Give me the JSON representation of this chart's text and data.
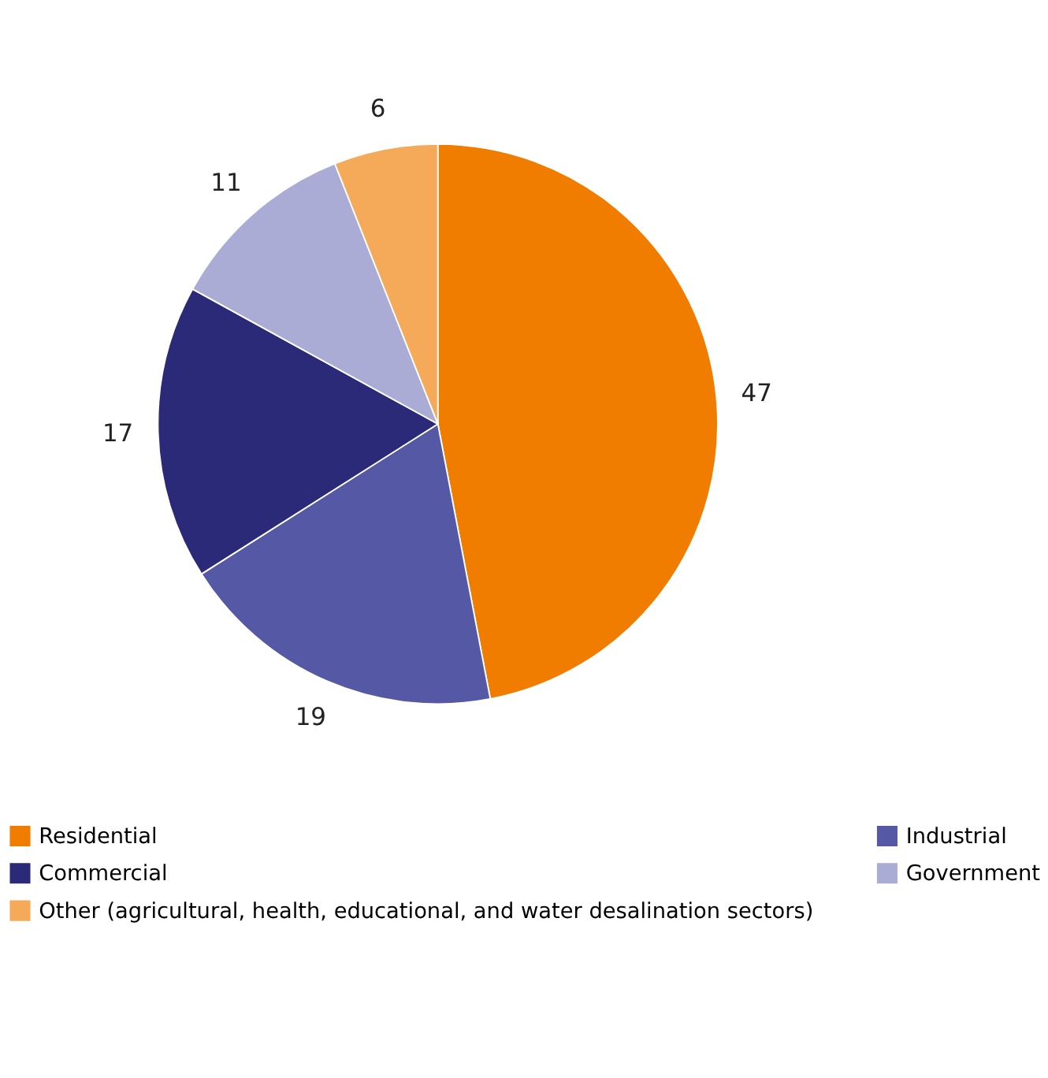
{
  "chart_data": {
    "type": "pie",
    "categories": [
      "Residential",
      "Industrial",
      "Commercial",
      "Government",
      "Other (agricultural, health, educational, and water desalination sectors)"
    ],
    "values": [
      47,
      19,
      17,
      11,
      6
    ],
    "colors": [
      "#f07c00",
      "#5558a4",
      "#2a2a78",
      "#aaacd6",
      "#f5aa5a"
    ],
    "data_labels": true,
    "legend": "bottom"
  }
}
